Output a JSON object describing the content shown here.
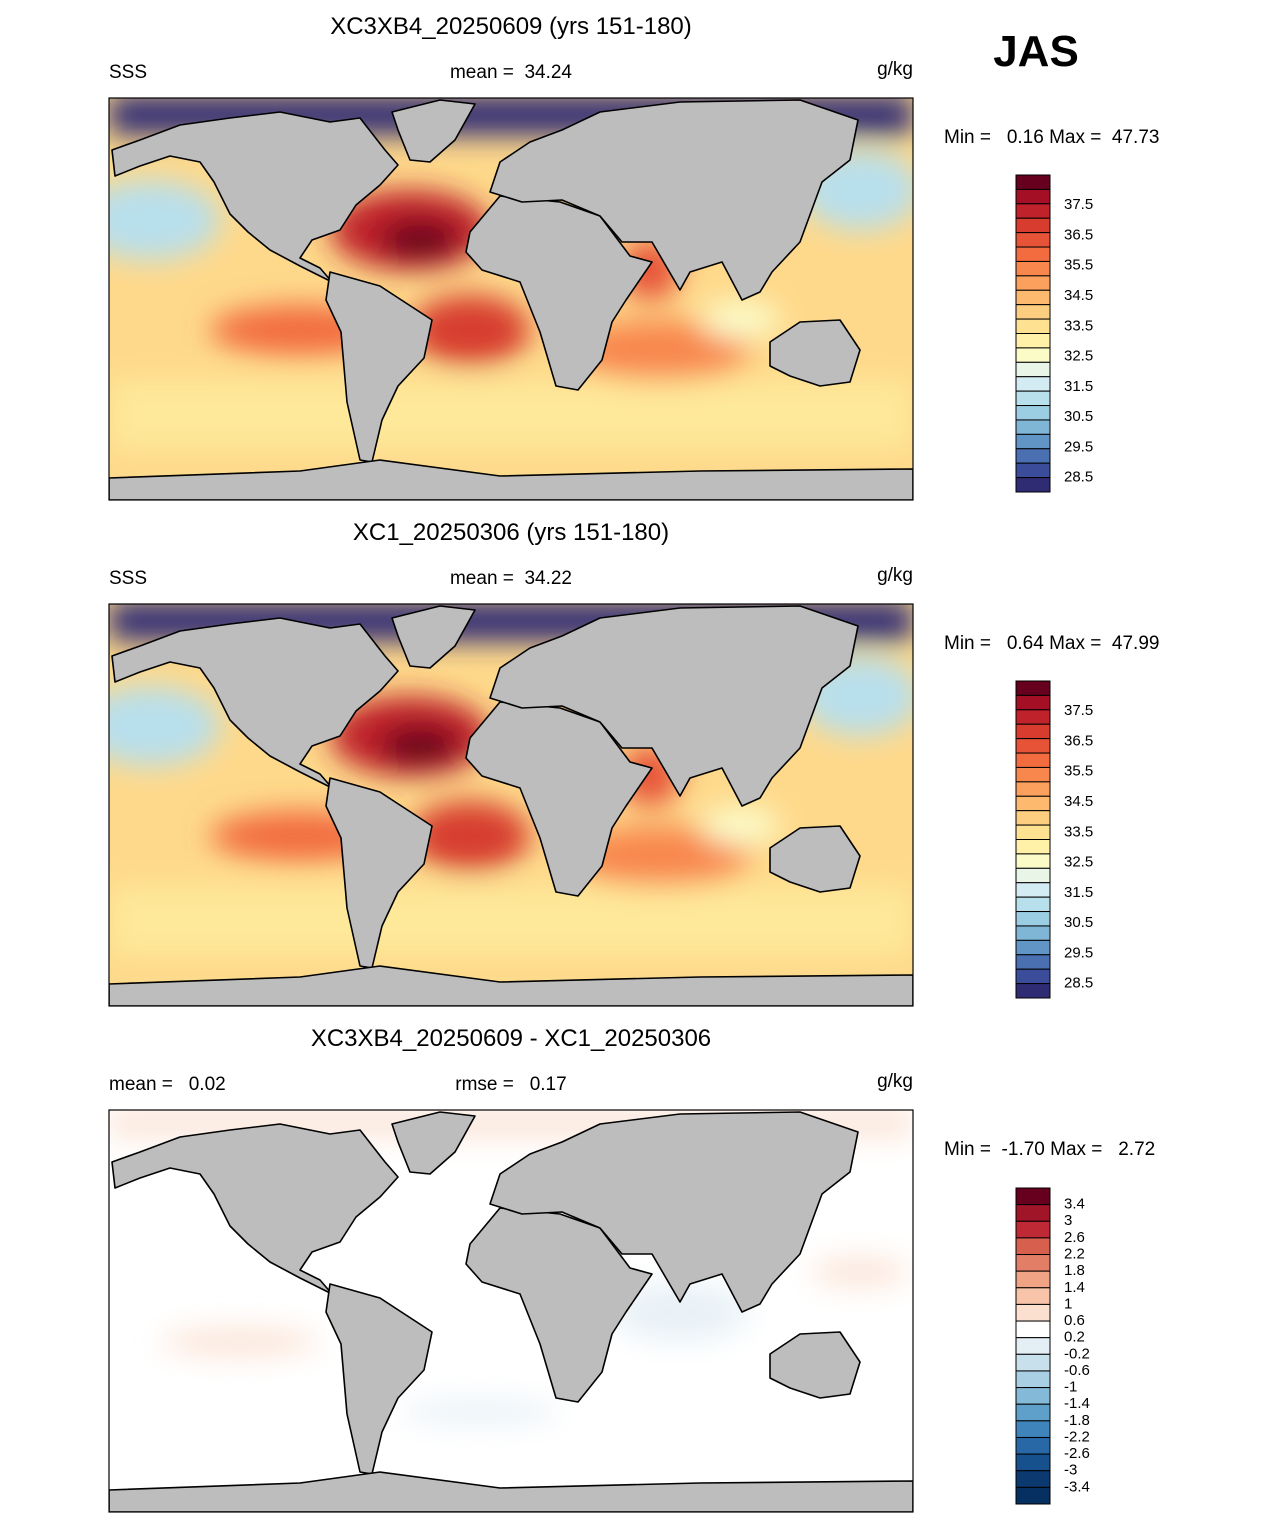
{
  "corner_label": "JAS",
  "panels": [
    {
      "title": "XC3XB4_20250609 (yrs 151-180)",
      "left": "SSS",
      "center": "mean =  34.24",
      "right": "g/kg",
      "range": "Min =   0.16 Max =  47.73",
      "colorbar": {
        "colors": [
          "#67001f",
          "#a50f26",
          "#c0222b",
          "#d73c2e",
          "#e65337",
          "#f26c40",
          "#f8874e",
          "#fca05d",
          "#fdb96e",
          "#fdcd80",
          "#fee292",
          "#fff1a8",
          "#fbfbc8",
          "#e8f5e7",
          "#d3ecf3",
          "#b8dfec",
          "#9ccee3",
          "#7fb6d6",
          "#6195c6",
          "#4b70b2",
          "#3a4c9a",
          "#2f2c74"
        ],
        "labels": [
          "37.5",
          "36.5",
          "35.5",
          "34.5",
          "33.5",
          "32.5",
          "31.5",
          "30.5",
          "29.5",
          "28.5"
        ]
      }
    },
    {
      "title": "XC1_20250306 (yrs 151-180)",
      "left": "SSS",
      "center": "mean =  34.22",
      "right": "g/kg",
      "range": "Min =   0.64 Max =  47.99",
      "colorbar": {
        "colors": [
          "#67001f",
          "#a50f26",
          "#c0222b",
          "#d73c2e",
          "#e65337",
          "#f26c40",
          "#f8874e",
          "#fca05d",
          "#fdb96e",
          "#fdcd80",
          "#fee292",
          "#fff1a8",
          "#fbfbc8",
          "#e8f5e7",
          "#d3ecf3",
          "#b8dfec",
          "#9ccee3",
          "#7fb6d6",
          "#6195c6",
          "#4b70b2",
          "#3a4c9a",
          "#2f2c74"
        ],
        "labels": [
          "37.5",
          "36.5",
          "35.5",
          "34.5",
          "33.5",
          "32.5",
          "31.5",
          "30.5",
          "29.5",
          "28.5"
        ]
      }
    },
    {
      "title": "XC3XB4_20250609 - XC1_20250306",
      "left": "mean =   0.02",
      "center": "rmse =   0.17",
      "right": "g/kg",
      "range": "Min =  -1.70 Max =   2.72",
      "colorbar": {
        "colors": [
          "#67001f",
          "#a11529",
          "#bf2835",
          "#d6604d",
          "#e27d66",
          "#f0a385",
          "#f7c4aa",
          "#fbe0d0",
          "#ffffff",
          "#e3eef5",
          "#c8dfec",
          "#a8cfe4",
          "#84bad8",
          "#5fa0cb",
          "#3f84bb",
          "#2868a6",
          "#16508d",
          "#0c3a70",
          "#053061"
        ],
        "labels": [
          "3.4",
          "3",
          "2.6",
          "2.2",
          "1.8",
          "1.4",
          "1",
          "0.6",
          "0.2",
          "-0.2",
          "-0.6",
          "-1",
          "-1.4",
          "-1.8",
          "-2.2",
          "-2.6",
          "-3",
          "-3.4"
        ]
      }
    }
  ]
}
